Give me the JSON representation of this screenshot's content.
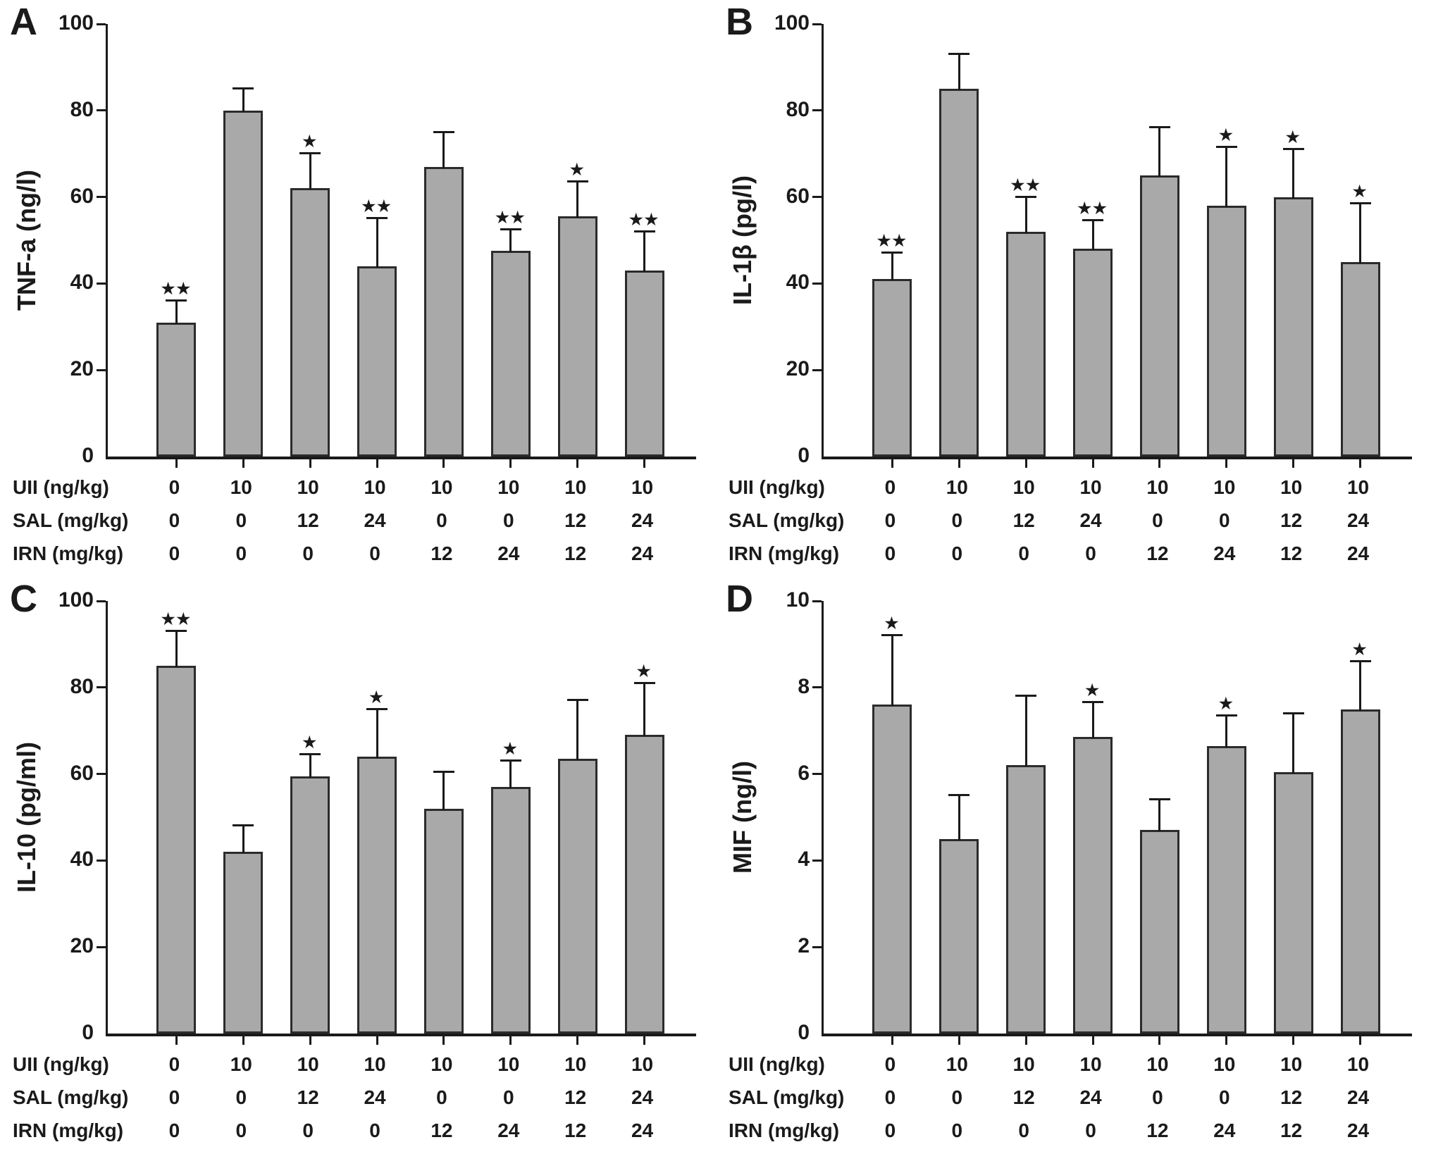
{
  "colors": {
    "bar_fill": "#a9a9a9",
    "bar_border": "#2b2b2b",
    "axis": "#1a1a1a",
    "text": "#1a1a1a",
    "background": "#ffffff"
  },
  "chart_data": [
    {
      "type": "bar",
      "panel_label": "A",
      "ylabel": "TNF-a (ng/l)",
      "ylim": [
        0,
        100
      ],
      "yticks": [
        0,
        20,
        40,
        60,
        80,
        100
      ],
      "grid": false,
      "legend": false,
      "values": [
        31,
        80,
        62,
        44,
        67,
        47.5,
        55.5,
        43
      ],
      "errors": [
        5,
        5,
        8,
        11,
        8,
        5,
        8,
        9
      ],
      "sig": [
        "**",
        "",
        "*",
        "**",
        "",
        "**",
        "*",
        "**"
      ],
      "x_rows": [
        {
          "label": "UII (ng/kg)",
          "values": [
            "0",
            "10",
            "10",
            "10",
            "10",
            "10",
            "10",
            "10"
          ]
        },
        {
          "label": "SAL (mg/kg)",
          "values": [
            "0",
            "0",
            "12",
            "24",
            "0",
            "0",
            "12",
            "24"
          ]
        },
        {
          "label": "IRN (mg/kg)",
          "values": [
            "0",
            "0",
            "0",
            "0",
            "12",
            "24",
            "12",
            "24"
          ]
        }
      ]
    },
    {
      "type": "bar",
      "panel_label": "B",
      "ylabel": "IL-1β (pg/l)",
      "ylim": [
        0,
        100
      ],
      "yticks": [
        0,
        20,
        40,
        60,
        80,
        100
      ],
      "grid": false,
      "legend": false,
      "values": [
        41,
        85,
        52,
        48,
        65,
        58,
        60,
        45
      ],
      "errors": [
        6,
        8,
        8,
        6.5,
        11,
        13.5,
        11,
        13.5
      ],
      "sig": [
        "**",
        "",
        "**",
        "**",
        "",
        "*",
        "*",
        "*"
      ],
      "x_rows": [
        {
          "label": "UII (ng/kg)",
          "values": [
            "0",
            "10",
            "10",
            "10",
            "10",
            "10",
            "10",
            "10"
          ]
        },
        {
          "label": "SAL (mg/kg)",
          "values": [
            "0",
            "0",
            "12",
            "24",
            "0",
            "0",
            "12",
            "24"
          ]
        },
        {
          "label": "IRN (mg/kg)",
          "values": [
            "0",
            "0",
            "0",
            "0",
            "12",
            "24",
            "12",
            "24"
          ]
        }
      ]
    },
    {
      "type": "bar",
      "panel_label": "C",
      "ylabel": "IL-10 (pg/ml)",
      "ylim": [
        0,
        100
      ],
      "yticks": [
        0,
        20,
        40,
        60,
        80,
        100
      ],
      "grid": false,
      "legend": false,
      "values": [
        85,
        42,
        59.5,
        64,
        52,
        57,
        63.5,
        69
      ],
      "errors": [
        8,
        6,
        5,
        11,
        8.5,
        6,
        13.5,
        12
      ],
      "sig": [
        "**",
        "",
        "*",
        "*",
        "",
        "*",
        "",
        "*"
      ],
      "x_rows": [
        {
          "label": "UII (ng/kg)",
          "values": [
            "0",
            "10",
            "10",
            "10",
            "10",
            "10",
            "10",
            "10"
          ]
        },
        {
          "label": "SAL (mg/kg)",
          "values": [
            "0",
            "0",
            "12",
            "24",
            "0",
            "0",
            "12",
            "24"
          ]
        },
        {
          "label": "IRN (mg/kg)",
          "values": [
            "0",
            "0",
            "0",
            "0",
            "12",
            "24",
            "12",
            "24"
          ]
        }
      ]
    },
    {
      "type": "bar",
      "panel_label": "D",
      "ylabel": "MIF (ng/l)",
      "ylim": [
        0,
        10
      ],
      "yticks": [
        0,
        2,
        4,
        6,
        8,
        10
      ],
      "grid": false,
      "legend": false,
      "values": [
        7.6,
        4.5,
        6.2,
        6.85,
        4.7,
        6.65,
        6.05,
        7.5
      ],
      "errors": [
        1.6,
        1.0,
        1.6,
        0.8,
        0.7,
        0.7,
        1.35,
        1.1
      ],
      "sig": [
        "*",
        "",
        "",
        "*",
        "",
        "*",
        "",
        "*"
      ],
      "x_rows": [
        {
          "label": "UII (ng/kg)",
          "values": [
            "0",
            "10",
            "10",
            "10",
            "10",
            "10",
            "10",
            "10"
          ]
        },
        {
          "label": "SAL (mg/kg)",
          "values": [
            "0",
            "0",
            "12",
            "24",
            "0",
            "0",
            "12",
            "24"
          ]
        },
        {
          "label": "IRN (mg/kg)",
          "values": [
            "0",
            "0",
            "0",
            "0",
            "12",
            "24",
            "12",
            "24"
          ]
        }
      ]
    }
  ]
}
